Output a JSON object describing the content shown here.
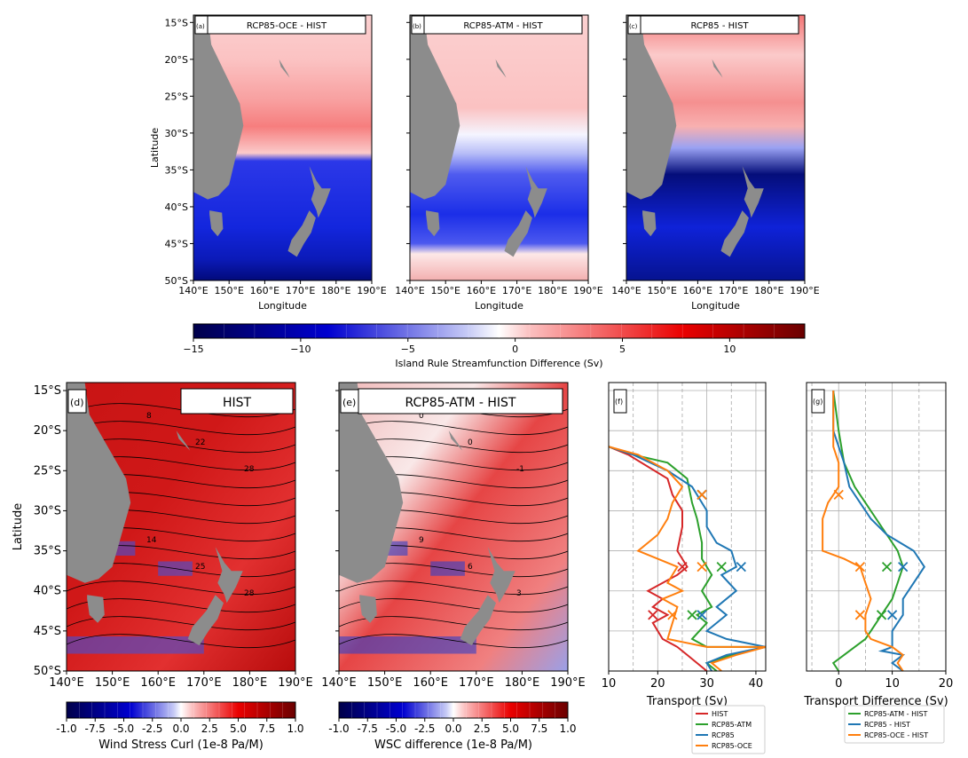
{
  "colors": {
    "land": "#8c8c8c",
    "hist": "#d62728",
    "atm": "#2ca02c",
    "rcp85": "#1f77b4",
    "oce": "#ff7f0e"
  },
  "top_panels": {
    "ylabel": "Latitude",
    "xlabel": "Longitude",
    "lat_ticks": [
      "15°S",
      "20°S",
      "25°S",
      "30°S",
      "35°S",
      "40°S",
      "45°S",
      "50°S"
    ],
    "lon_ticks": [
      "140°E",
      "150°E",
      "160°E",
      "170°E",
      "180°E",
      "190°E"
    ],
    "panels": [
      {
        "tag": "(a)",
        "title": "RCP85-OCE - HIST"
      },
      {
        "tag": "(b)",
        "title": "RCP85-ATM - HIST"
      },
      {
        "tag": "(c)",
        "title": "RCP85 - HIST"
      }
    ],
    "colorbar": {
      "label": "Island Rule Streamfunction Difference (Sv)",
      "ticks": [
        "−15",
        "−10",
        "−5",
        "0",
        "5",
        "10"
      ]
    }
  },
  "bottom_maps": {
    "ylabel": "Latitude",
    "lat_ticks": [
      "15°S",
      "20°S",
      "25°S",
      "30°S",
      "35°S",
      "40°S",
      "45°S",
      "50°S"
    ],
    "lon_ticks": [
      "140°E",
      "150°E",
      "160°E",
      "170°E",
      "180°E",
      "190°E"
    ],
    "panels": [
      {
        "tag": "(d)",
        "title": "HIST",
        "contour_labels": [
          "8",
          "22",
          "28",
          "14",
          "25",
          "28"
        ],
        "colorbar": {
          "label": "Wind Stress Curl (1e-8 Pa/M)",
          "ticks": [
            "-1.0",
            "-7.5",
            "-5.0",
            "-2.5",
            "0.0",
            "2.5",
            "5.0",
            "7.5",
            "1.0"
          ]
        }
      },
      {
        "tag": "(e)",
        "title": "RCP85-ATM - HIST",
        "contour_labels": [
          "0",
          "0",
          "-1",
          "9",
          "6",
          "3"
        ],
        "colorbar": {
          "label": "WSC difference (1e-8 Pa/M)",
          "ticks": [
            "-1.0",
            "-7.5",
            "-5.0",
            "-2.5",
            "0.0",
            "2.5",
            "5.0",
            "7.5",
            "1.0"
          ]
        }
      }
    ]
  },
  "chart_data": [
    {
      "type": "line",
      "tag": "(f)",
      "xlabel": "Transport (Sv)",
      "xlim": [
        10,
        42
      ],
      "ylim": [
        -50,
        -14
      ],
      "x_ticks": [
        "10",
        "20",
        "30",
        "40"
      ],
      "legend": "bottom-right",
      "series": [
        {
          "name": "HIST",
          "key": "hist",
          "points": [
            [
              10,
              -22
            ],
            [
              14,
              -23
            ],
            [
              22,
              -26
            ],
            [
              23,
              -28
            ],
            [
              25,
              -30
            ],
            [
              25,
              -32
            ],
            [
              24,
              -35
            ],
            [
              26,
              -37
            ],
            [
              24,
              -38
            ],
            [
              21,
              -39
            ],
            [
              18,
              -40
            ],
            [
              21,
              -41
            ],
            [
              19,
              -42
            ],
            [
              22,
              -43
            ],
            [
              19,
              -44
            ],
            [
              21,
              -46
            ],
            [
              24,
              -47
            ],
            [
              26,
              -48
            ],
            [
              28,
              -49
            ],
            [
              30,
              -50
            ]
          ]
        },
        {
          "name": "RCP85-ATM",
          "key": "atm",
          "points": [
            [
              10,
              -22
            ],
            [
              15,
              -23
            ],
            [
              22,
              -24
            ],
            [
              26,
              -26
            ],
            [
              27,
              -29
            ],
            [
              28,
              -31
            ],
            [
              29,
              -34
            ],
            [
              29,
              -36
            ],
            [
              31,
              -38
            ],
            [
              29,
              -40
            ],
            [
              31,
              -42
            ],
            [
              28,
              -43
            ],
            [
              30,
              -44
            ],
            [
              27,
              -46
            ],
            [
              30,
              -47
            ],
            [
              42,
              -47
            ],
            [
              35,
              -48
            ],
            [
              30,
              -49
            ],
            [
              32,
              -50
            ]
          ]
        },
        {
          "name": "RCP85",
          "key": "rcp85",
          "points": [
            [
              10,
              -22
            ],
            [
              15,
              -23
            ],
            [
              22,
              -25
            ],
            [
              27,
              -27
            ],
            [
              30,
              -30
            ],
            [
              30,
              -32
            ],
            [
              32,
              -34
            ],
            [
              35,
              -35
            ],
            [
              36,
              -37
            ],
            [
              33,
              -38
            ],
            [
              36,
              -40
            ],
            [
              32,
              -42
            ],
            [
              34,
              -43
            ],
            [
              30,
              -45
            ],
            [
              34,
              -46
            ],
            [
              42,
              -47
            ],
            [
              34,
              -48
            ],
            [
              30,
              -49
            ],
            [
              31,
              -50
            ]
          ]
        },
        {
          "name": "RCP85-OCE",
          "key": "oce",
          "points": [
            [
              10,
              -22
            ],
            [
              16,
              -23
            ],
            [
              22,
              -25
            ],
            [
              25,
              -27
            ],
            [
              23,
              -29
            ],
            [
              22,
              -31
            ],
            [
              20,
              -33
            ],
            [
              16,
              -35
            ],
            [
              20,
              -36
            ],
            [
              24,
              -37
            ],
            [
              22,
              -39
            ],
            [
              25,
              -40
            ],
            [
              21,
              -41
            ],
            [
              24,
              -42
            ],
            [
              23,
              -44
            ],
            [
              22,
              -46
            ],
            [
              30,
              -47
            ],
            [
              42,
              -47
            ],
            [
              36,
              -48
            ],
            [
              31,
              -49
            ],
            [
              33,
              -50
            ]
          ]
        }
      ],
      "markers": [
        {
          "key": "hist",
          "points": [
            [
              29,
              -28
            ],
            [
              25,
              -37
            ],
            [
              19,
              -43
            ]
          ]
        },
        {
          "key": "atm",
          "points": [
            [
              29,
              -28
            ],
            [
              33,
              -37
            ],
            [
              27,
              -43
            ]
          ]
        },
        {
          "key": "rcp85",
          "points": [
            [
              29,
              -28
            ],
            [
              37,
              -37
            ],
            [
              29,
              -43
            ]
          ]
        },
        {
          "key": "oce",
          "points": [
            [
              29,
              -28
            ],
            [
              29,
              -37
            ],
            [
              23,
              -43
            ]
          ]
        }
      ]
    },
    {
      "type": "line",
      "tag": "(g)",
      "xlabel": "Transport Difference (Sv)",
      "xlim": [
        -6,
        20
      ],
      "ylim": [
        -50,
        -14
      ],
      "x_ticks": [
        "0",
        "10",
        "20"
      ],
      "legend": "bottom-right",
      "series": [
        {
          "name": "RCP85-ATM - HIST",
          "key": "atm",
          "points": [
            [
              -1,
              -15
            ],
            [
              0,
              -20
            ],
            [
              1,
              -24
            ],
            [
              3,
              -27
            ],
            [
              5,
              -29
            ],
            [
              7,
              -31
            ],
            [
              9,
              -33
            ],
            [
              11,
              -35
            ],
            [
              12,
              -37
            ],
            [
              11,
              -39
            ],
            [
              10,
              -41
            ],
            [
              8,
              -43
            ],
            [
              6,
              -45
            ],
            [
              5,
              -46
            ],
            [
              3,
              -47
            ],
            [
              1,
              -48
            ],
            [
              -1,
              -49
            ],
            [
              0,
              -50
            ]
          ]
        },
        {
          "name": "RCP85 - HIST",
          "key": "rcp85",
          "points": [
            [
              -1,
              -15
            ],
            [
              -1,
              -20
            ],
            [
              1,
              -24
            ],
            [
              2,
              -27
            ],
            [
              4,
              -29
            ],
            [
              6,
              -31
            ],
            [
              9,
              -33
            ],
            [
              14,
              -35
            ],
            [
              16,
              -37
            ],
            [
              14,
              -39
            ],
            [
              12,
              -41
            ],
            [
              12,
              -43
            ],
            [
              10,
              -45
            ],
            [
              10,
              -47
            ],
            [
              8,
              -47.5
            ],
            [
              12,
              -48
            ],
            [
              10,
              -49
            ],
            [
              12,
              -50
            ]
          ]
        },
        {
          "name": "RCP85-OCE - HIST",
          "key": "oce",
          "points": [
            [
              -1,
              -15
            ],
            [
              -1,
              -22
            ],
            [
              0,
              -24
            ],
            [
              0,
              -27
            ],
            [
              -2,
              -29
            ],
            [
              -3,
              -31
            ],
            [
              -3,
              -33
            ],
            [
              -3,
              -35
            ],
            [
              1,
              -36
            ],
            [
              4,
              -37
            ],
            [
              5,
              -39
            ],
            [
              6,
              -41
            ],
            [
              5,
              -43
            ],
            [
              5,
              -45
            ],
            [
              6,
              -46
            ],
            [
              10,
              -47
            ],
            [
              12,
              -48
            ],
            [
              11,
              -49
            ],
            [
              12,
              -50
            ]
          ]
        }
      ],
      "markers": [
        {
          "key": "oce",
          "points": [
            [
              0,
              -28
            ],
            [
              4,
              -37
            ],
            [
              4,
              -43
            ]
          ]
        },
        {
          "key": "atm",
          "points": [
            [
              9,
              -37
            ],
            [
              8,
              -43
            ]
          ]
        },
        {
          "key": "rcp85",
          "points": [
            [
              12,
              -37
            ],
            [
              10,
              -43
            ]
          ]
        }
      ]
    }
  ]
}
